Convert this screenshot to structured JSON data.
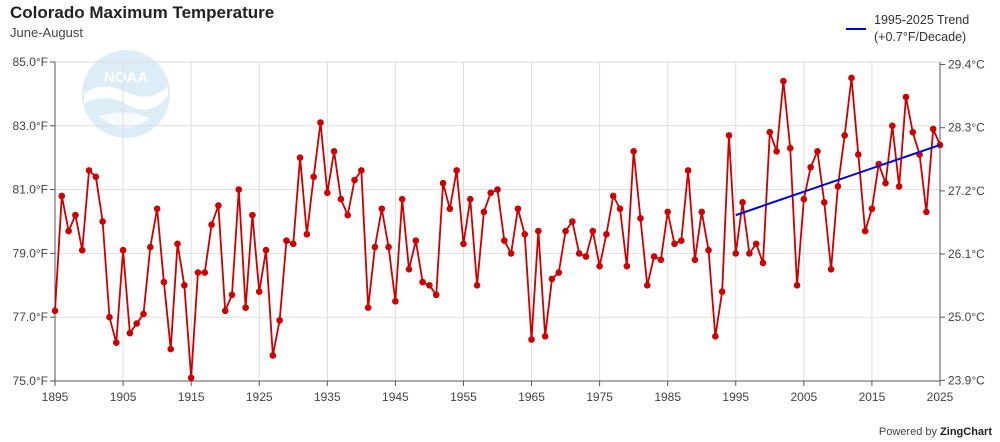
{
  "title": "Colorado Maximum Temperature",
  "subtitle": "June-August",
  "legend": {
    "trend_label_1": "1995-2025 Trend",
    "trend_label_2": "(+0.7°F/Decade)"
  },
  "credit": {
    "prefix": "Powered by",
    "brand": "ZingChart"
  },
  "colors": {
    "series": "#cc0000",
    "trend": "#0000dd",
    "grid": "#dddddd",
    "logo": "#d6eaf5"
  },
  "chart_data": {
    "type": "line",
    "title": "Colorado Maximum Temperature",
    "subtitle": "June-August",
    "xlim": [
      1895,
      2025
    ],
    "ylim": [
      75,
      85
    ],
    "x_ticks": [
      1895,
      1905,
      1915,
      1925,
      1935,
      1945,
      1955,
      1965,
      1975,
      1985,
      1995,
      2005,
      2015,
      2025
    ],
    "y_ticks": [
      {
        "value": 75,
        "label": "75.0°F"
      },
      {
        "value": 77,
        "label": "77.0°F"
      },
      {
        "value": 79,
        "label": "79.0°F"
      },
      {
        "value": 81,
        "label": "81.0°F"
      },
      {
        "value": 83,
        "label": "83.0°F"
      },
      {
        "value": 85,
        "label": "85.0°F"
      }
    ],
    "y2_ticks": [
      {
        "value": 75.02,
        "label": "23.9°C"
      },
      {
        "value": 77.0,
        "label": "25.0°C"
      },
      {
        "value": 78.98,
        "label": "26.1°C"
      },
      {
        "value": 80.96,
        "label": "27.2°C"
      },
      {
        "value": 82.94,
        "label": "28.3°C"
      },
      {
        "value": 84.92,
        "label": "29.4°C"
      }
    ],
    "grid": true,
    "legend_position": "top-right",
    "series": [
      {
        "name": "",
        "start_year": 1895,
        "values": [
          77.2,
          80.8,
          79.7,
          80.2,
          79.1,
          81.6,
          81.4,
          80.0,
          77.0,
          76.2,
          79.1,
          76.5,
          76.8,
          77.1,
          79.2,
          80.4,
          78.1,
          76.0,
          79.3,
          78.0,
          75.1,
          78.4,
          78.4,
          79.9,
          80.5,
          77.2,
          77.7,
          81.0,
          77.3,
          80.2,
          77.8,
          79.1,
          75.8,
          76.9,
          79.4,
          79.3,
          82.0,
          79.6,
          81.4,
          83.1,
          80.9,
          82.2,
          80.7,
          80.2,
          81.3,
          81.6,
          77.3,
          79.2,
          80.4,
          79.2,
          77.5,
          80.7,
          78.5,
          79.4,
          78.1,
          78.0,
          77.7,
          81.2,
          80.4,
          81.6,
          79.3,
          80.7,
          78.0,
          80.3,
          80.9,
          81.0,
          79.4,
          79.0,
          80.4,
          79.6,
          76.3,
          79.7,
          76.4,
          78.2,
          78.4,
          79.7,
          80.0,
          79.0,
          78.9,
          79.7,
          78.6,
          79.6,
          80.8,
          80.4,
          78.6,
          82.2,
          80.1,
          78.0,
          78.9,
          78.8,
          80.3,
          79.3,
          79.4,
          81.6,
          78.8,
          80.3,
          79.1,
          76.4,
          77.8,
          82.7,
          79.0,
          80.6,
          79.0,
          79.3,
          78.7,
          82.8,
          82.2,
          84.4,
          82.3,
          78.0,
          80.7,
          81.7,
          82.2,
          80.6,
          78.5,
          81.1,
          82.7,
          84.5,
          82.1,
          79.7,
          80.4,
          81.8,
          81.2,
          83.0,
          81.1,
          83.9,
          82.8,
          82.1,
          80.3,
          82.9,
          82.4
        ]
      }
    ],
    "trend": {
      "label": "1995-2025 Trend (+0.7°F/Decade)",
      "x": [
        1995,
        2025
      ],
      "y": [
        80.2,
        82.4
      ]
    }
  }
}
